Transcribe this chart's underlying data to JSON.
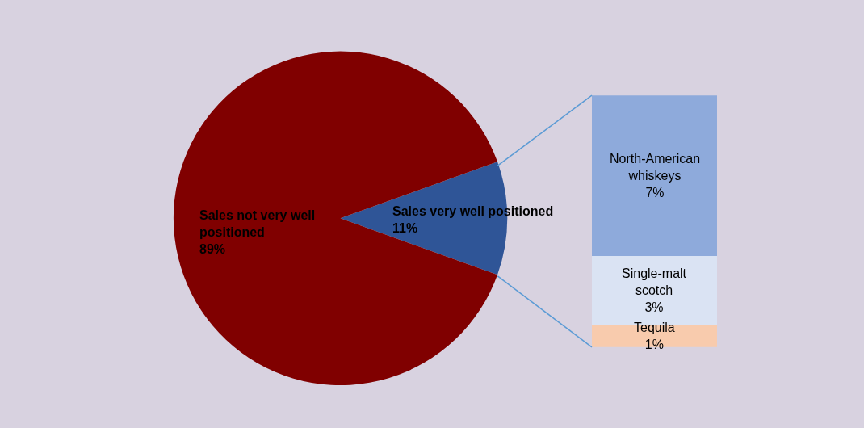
{
  "chart_data": [
    {
      "type": "pie",
      "categories": [
        "Sales very well positioned",
        "Sales not very well positioned"
      ],
      "values": [
        11,
        89
      ],
      "value_labels": [
        "11%",
        "89%"
      ],
      "colors": [
        "#2f5597",
        "#800000"
      ]
    },
    {
      "type": "bar",
      "stacked": true,
      "categories": [
        null
      ],
      "tick_labels": false,
      "series": [
        {
          "name": "Tequila",
          "color": "#f8cbad",
          "values": [
            1
          ],
          "value_labels": [
            "1%"
          ]
        },
        {
          "name": "Single-malt scotch",
          "color": "#dae3f3",
          "values": [
            3
          ],
          "value_labels": [
            "3%"
          ]
        },
        {
          "name": "North-American whiskeys",
          "color": "#8eaadb",
          "values": [
            7
          ],
          "value_labels": [
            "7%"
          ]
        }
      ]
    }
  ]
}
